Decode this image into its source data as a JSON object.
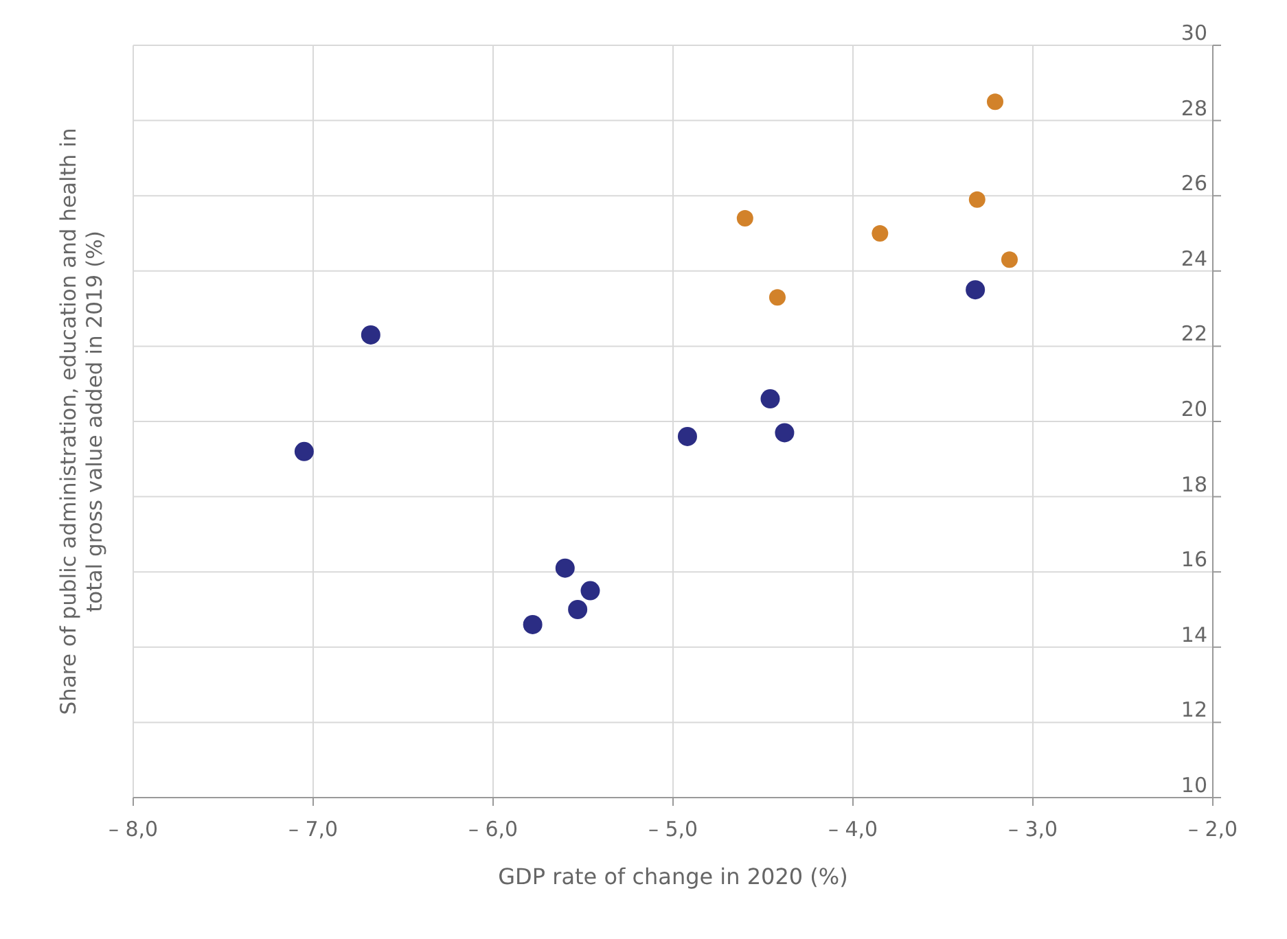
{
  "chart_data": {
    "type": "scatter",
    "xlabel": "GDP rate of change in 2020 (%)",
    "ylabel": "Share of public administration, education and health in total gross value added in 2019 (%)",
    "xlim": [
      -8,
      -2
    ],
    "xticks": [
      {
        "value": -8,
        "label": "– 8,0"
      },
      {
        "value": -7,
        "label": "– 7,0"
      },
      {
        "value": -6,
        "label": "– 6,0"
      },
      {
        "value": -5,
        "label": "– 5,0"
      },
      {
        "value": -4,
        "label": "– 4,0"
      },
      {
        "value": -3,
        "label": "– 3,0"
      },
      {
        "value": -2,
        "label": "– 2,0"
      }
    ],
    "ylim": [
      10,
      30
    ],
    "yticks": [
      10,
      12,
      14,
      16,
      18,
      20,
      22,
      24,
      26,
      28,
      30
    ],
    "grid": true,
    "marker": "circle",
    "series": [
      {
        "color": "#2b2d84",
        "x": [
          -7.05,
          -6.68,
          -5.6,
          -5.46,
          -5.53,
          -5.78,
          -4.92,
          -4.46,
          -4.38,
          -3.32
        ],
        "values": [
          19.2,
          22.3,
          16.1,
          15.5,
          15.0,
          14.6,
          19.6,
          20.6,
          19.7,
          23.5
        ]
      },
      {
        "color": "#d2822a",
        "x": [
          -3.21,
          -3.31,
          -3.13,
          -3.85,
          -4.6,
          -4.42
        ],
        "values": [
          28.5,
          25.9,
          24.3,
          25.0,
          25.4,
          23.3
        ]
      }
    ]
  }
}
